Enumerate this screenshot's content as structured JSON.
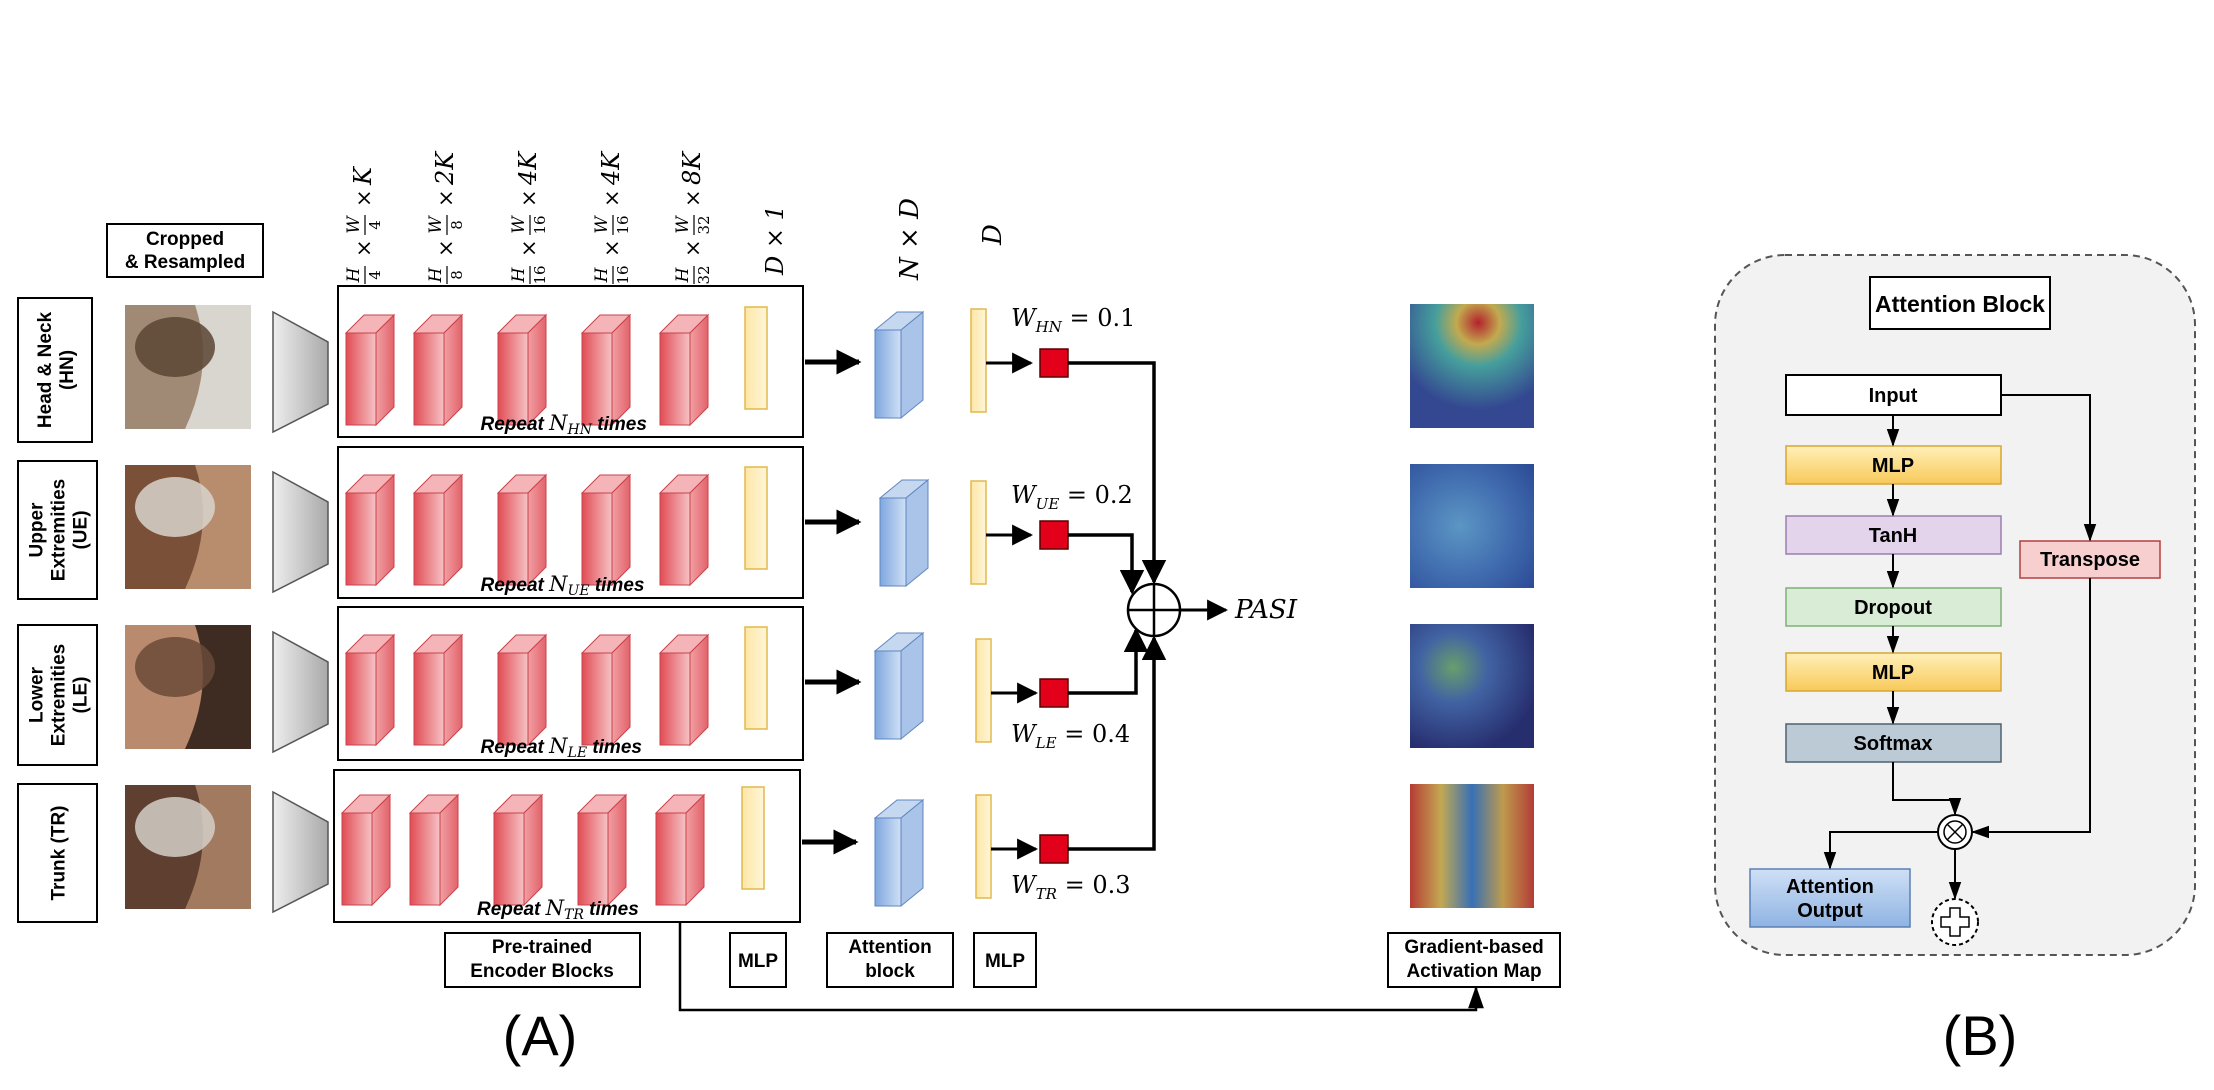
{
  "panel_a": {
    "label": "(A)",
    "cropped_label_lines": [
      "Cropped",
      "& Resampled"
    ],
    "dims": [
      {
        "num": "H",
        "den": "4",
        "k": "K"
      },
      {
        "num": "H",
        "den": "8",
        "k": "2K"
      },
      {
        "num": "H",
        "den": "16",
        "k": "4K"
      },
      {
        "num": "H",
        "den": "16",
        "k": "4K"
      },
      {
        "num": "H",
        "den": "32",
        "k": "8K"
      }
    ],
    "dim_w": "W",
    "dim_d1": "D × 1",
    "dim_nd": "N × D",
    "dim_d": "D",
    "regions": [
      {
        "label_lines": [
          "Head & Neck",
          "(HN)"
        ],
        "repeat_prefix": "Repeat ",
        "repeat_n": "N",
        "repeat_sub": "HN",
        "repeat_suffix": " times",
        "weight_sub": "HN",
        "weight_value": "= 0.1"
      },
      {
        "label_lines": [
          "Upper",
          "Extremities",
          "(UE)"
        ],
        "repeat_prefix": "Repeat ",
        "repeat_n": "N",
        "repeat_sub": "UE",
        "repeat_suffix": " times",
        "weight_sub": "UE",
        "weight_value": "= 0.2"
      },
      {
        "label_lines": [
          "Lower",
          "Extremities",
          "(LE)"
        ],
        "repeat_prefix": "Repeat ",
        "repeat_n": "N",
        "repeat_sub": "LE",
        "repeat_suffix": " times",
        "weight_sub": "LE",
        "weight_value": "= 0.4"
      },
      {
        "label_lines": [
          "Trunk (TR)"
        ],
        "repeat_prefix": "Repeat ",
        "repeat_n": "N",
        "repeat_sub": "TR",
        "repeat_suffix": " times",
        "weight_sub": "TR",
        "weight_value": "= 0.3"
      }
    ],
    "weight_symbol": "W",
    "output_label": "PASI",
    "bottom_labels": {
      "encoder_lines": [
        "Pre-trained",
        "Encoder Blocks"
      ],
      "mlp1": "MLP",
      "attention_lines": [
        "Attention",
        "block"
      ],
      "mlp2": "MLP",
      "gradient_lines": [
        "Gradient-based",
        "Activation Map"
      ]
    }
  },
  "panel_b": {
    "label": "(B)",
    "title": "Attention Block",
    "input": "Input",
    "mlp_top": "MLP",
    "tanh": "TanH",
    "dropout": "Dropout",
    "mlp_bottom": "MLP",
    "softmax": "Softmax",
    "transpose": "Transpose",
    "attention_output_lines": [
      "Attention",
      "Output"
    ],
    "multiply_symbol": "⊗",
    "add_symbol": "+"
  },
  "colors": {
    "encoder_block": "#e8585f",
    "feature_bar": "#fde396",
    "attention_block": "#8fb3e3",
    "weight_node": "#e3001b",
    "mlp_box": "#fcd97a",
    "tanh_box": "#e3d4ec",
    "dropout_box": "#d9ecd5",
    "softmax_box": "#bccad6",
    "transpose_box": "#f7cfcf",
    "attention_output_box": "#a9c6ec",
    "panel_b_bg": "#f2f2f2"
  }
}
